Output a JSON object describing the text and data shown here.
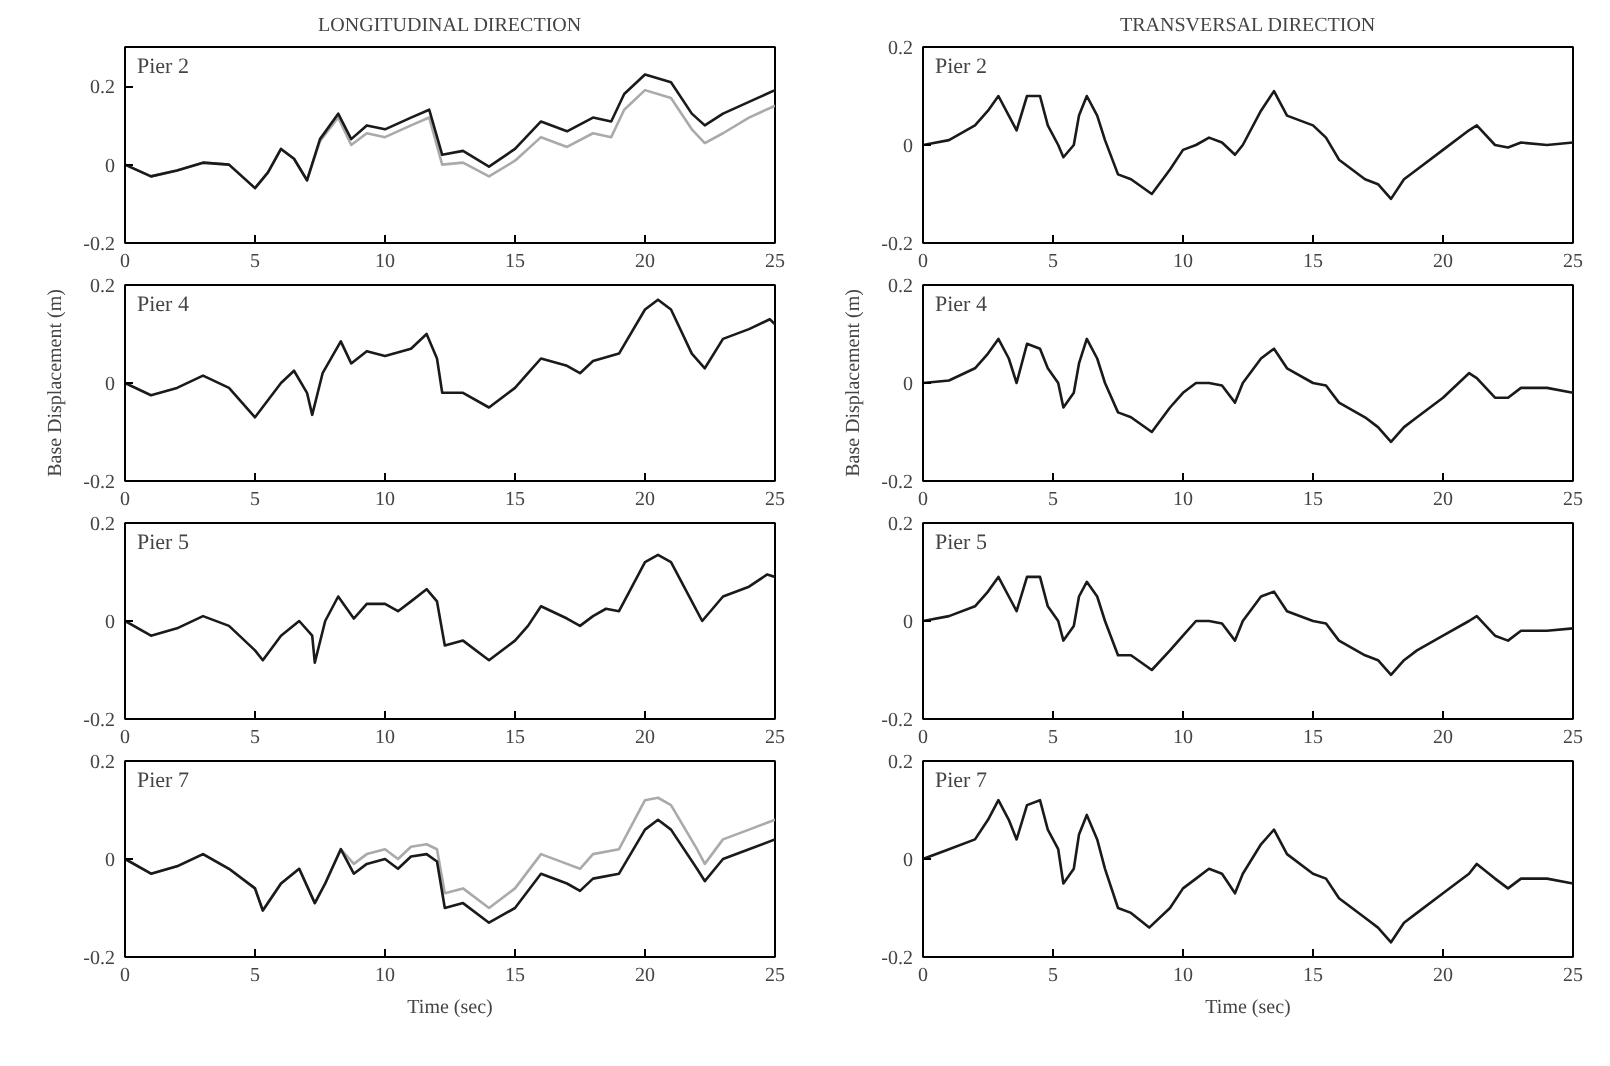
{
  "chart_data": [
    {
      "type": "line",
      "title": "LONGITUDINAL DIRECTION",
      "annotations": [
        "Pier 2"
      ],
      "xlim": [
        0,
        25
      ],
      "xticks": [
        0,
        5,
        10,
        15,
        20,
        25
      ],
      "ylim": [
        -0.2,
        0.3
      ],
      "yticks": [
        -0.2,
        0,
        0.2
      ],
      "grid": false,
      "legend": false,
      "series": [
        {
          "color": "#aaaaaa",
          "x": [
            0,
            1,
            2,
            3,
            4,
            5,
            5.5,
            6,
            6.5,
            7,
            7.5,
            8.2,
            8.7,
            9.3,
            10,
            11,
            11.7,
            12.2,
            13,
            14,
            15,
            16,
            17,
            18,
            18.7,
            19.2,
            20,
            21,
            21.8,
            22.3,
            23,
            24,
            25
          ],
          "values": [
            0,
            -0.03,
            -0.015,
            0.005,
            0,
            -0.06,
            -0.02,
            0.04,
            0.015,
            -0.04,
            0.06,
            0.12,
            0.05,
            0.08,
            0.07,
            0.1,
            0.12,
            0.0,
            0.005,
            -0.03,
            0.01,
            0.07,
            0.045,
            0.08,
            0.07,
            0.14,
            0.19,
            0.17,
            0.09,
            0.055,
            0.08,
            0.12,
            0.15
          ]
        },
        {
          "color": "#1a1a1a",
          "x": [
            0,
            1,
            2,
            3,
            4,
            5,
            5.5,
            6,
            6.5,
            7,
            7.5,
            8.2,
            8.7,
            9.3,
            10,
            11,
            11.7,
            12.2,
            13,
            14,
            15,
            16,
            17,
            18,
            18.7,
            19.2,
            20,
            21,
            21.8,
            22.3,
            23,
            24,
            25
          ],
          "values": [
            0,
            -0.03,
            -0.015,
            0.005,
            0,
            -0.06,
            -0.02,
            0.04,
            0.015,
            -0.04,
            0.065,
            0.13,
            0.065,
            0.1,
            0.09,
            0.12,
            0.14,
            0.025,
            0.035,
            -0.005,
            0.04,
            0.11,
            0.085,
            0.12,
            0.11,
            0.18,
            0.23,
            0.21,
            0.13,
            0.1,
            0.13,
            0.16,
            0.19
          ]
        }
      ]
    },
    {
      "type": "line",
      "title": "TRANSVERSAL DIRECTION",
      "annotations": [
        "Pier 2"
      ],
      "xlim": [
        0,
        25
      ],
      "xticks": [
        0,
        5,
        10,
        15,
        20,
        25
      ],
      "ylim": [
        -0.2,
        0.2
      ],
      "yticks": [
        -0.2,
        0,
        0.2
      ],
      "grid": false,
      "legend": false,
      "series": [
        {
          "color": "#1a1a1a",
          "x": [
            0,
            1,
            2,
            2.5,
            2.9,
            3.3,
            3.6,
            4,
            4.5,
            4.8,
            5.2,
            5.4,
            5.8,
            6,
            6.3,
            6.7,
            7,
            7.5,
            8,
            8.8,
            9.5,
            10,
            10.5,
            11,
            11.5,
            12,
            12.3,
            13,
            13.5,
            14,
            15,
            15.5,
            16,
            17,
            17.5,
            18,
            18.5,
            19,
            20,
            21,
            21.3,
            22,
            22.5,
            23,
            24,
            25
          ],
          "values": [
            0,
            0.01,
            0.04,
            0.07,
            0.1,
            0.06,
            0.03,
            0.1,
            0.1,
            0.04,
            0.0,
            -0.025,
            0.0,
            0.06,
            0.1,
            0.06,
            0.01,
            -0.06,
            -0.07,
            -0.1,
            -0.05,
            -0.01,
            0.0,
            0.015,
            0.005,
            -0.02,
            0.0,
            0.07,
            0.11,
            0.06,
            0.04,
            0.015,
            -0.03,
            -0.07,
            -0.08,
            -0.11,
            -0.07,
            -0.05,
            -0.01,
            0.03,
            0.04,
            0.0,
            -0.005,
            0.005,
            0.0,
            0.005
          ]
        }
      ]
    },
    {
      "type": "line",
      "ylabel": "Base Displacement (m)",
      "annotations": [
        "Pier 4"
      ],
      "xlim": [
        0,
        25
      ],
      "xticks": [
        0,
        5,
        10,
        15,
        20,
        25
      ],
      "ylim": [
        -0.2,
        0.2
      ],
      "yticks": [
        -0.2,
        0,
        0.2
      ],
      "grid": false,
      "legend": false,
      "series": [
        {
          "color": "#1a1a1a",
          "x": [
            0,
            1,
            2,
            3,
            4,
            5,
            6,
            6.5,
            7,
            7.2,
            7.6,
            8.3,
            8.7,
            9.3,
            10,
            11,
            11.6,
            12,
            12.2,
            13,
            14,
            15,
            15.5,
            16,
            17,
            17.5,
            18,
            19,
            20,
            20.5,
            21,
            21.8,
            22.3,
            23,
            24,
            24.8,
            25
          ],
          "values": [
            0,
            -0.025,
            -0.01,
            0.015,
            -0.01,
            -0.07,
            0.0,
            0.025,
            -0.02,
            -0.065,
            0.02,
            0.085,
            0.04,
            0.065,
            0.055,
            0.07,
            0.1,
            0.05,
            -0.02,
            -0.02,
            -0.05,
            -0.01,
            0.02,
            0.05,
            0.035,
            0.02,
            0.045,
            0.06,
            0.15,
            0.17,
            0.15,
            0.06,
            0.03,
            0.09,
            0.11,
            0.13,
            0.12
          ]
        }
      ]
    },
    {
      "type": "line",
      "ylabel": "Base Displacement (m)",
      "annotations": [
        "Pier 4"
      ],
      "xlim": [
        0,
        25
      ],
      "xticks": [
        0,
        5,
        10,
        15,
        20,
        25
      ],
      "ylim": [
        -0.2,
        0.2
      ],
      "yticks": [
        -0.2,
        0,
        0.2
      ],
      "grid": false,
      "legend": false,
      "series": [
        {
          "color": "#1a1a1a",
          "x": [
            0,
            1,
            2,
            2.5,
            2.9,
            3.3,
            3.6,
            4,
            4.5,
            4.8,
            5.2,
            5.4,
            5.8,
            6,
            6.3,
            6.7,
            7,
            7.5,
            8,
            8.8,
            9.5,
            10,
            10.5,
            11,
            11.5,
            12,
            12.3,
            13,
            13.5,
            14,
            15,
            15.5,
            16,
            17,
            17.5,
            18,
            18.5,
            19,
            20,
            21,
            21.3,
            22,
            22.5,
            23,
            24,
            25
          ],
          "values": [
            0,
            0.005,
            0.03,
            0.06,
            0.09,
            0.05,
            0.0,
            0.08,
            0.07,
            0.03,
            0.0,
            -0.05,
            -0.02,
            0.04,
            0.09,
            0.05,
            0.0,
            -0.06,
            -0.07,
            -0.1,
            -0.05,
            -0.02,
            0.0,
            0.0,
            -0.005,
            -0.04,
            0.0,
            0.05,
            0.07,
            0.03,
            0.0,
            -0.005,
            -0.04,
            -0.07,
            -0.09,
            -0.12,
            -0.09,
            -0.07,
            -0.03,
            0.02,
            0.01,
            -0.03,
            -0.03,
            -0.01,
            -0.01,
            -0.02
          ]
        }
      ]
    },
    {
      "type": "line",
      "annotations": [
        "Pier 5"
      ],
      "xlim": [
        0,
        25
      ],
      "xticks": [
        0,
        5,
        10,
        15,
        20,
        25
      ],
      "ylim": [
        -0.2,
        0.2
      ],
      "yticks": [
        -0.2,
        0,
        0.2
      ],
      "grid": false,
      "legend": false,
      "series": [
        {
          "color": "#1a1a1a",
          "x": [
            0,
            1,
            2,
            3,
            4,
            5,
            5.3,
            6,
            6.7,
            7.2,
            7.3,
            7.7,
            8.2,
            8.8,
            9.3,
            10,
            10.5,
            11,
            11.6,
            12,
            12.3,
            13,
            14,
            15,
            15.5,
            16,
            17,
            17.5,
            18,
            18.5,
            19,
            19.5,
            20,
            20.5,
            21,
            21.8,
            22.2,
            23,
            24,
            24.7,
            25
          ],
          "values": [
            0,
            -0.03,
            -0.015,
            0.01,
            -0.01,
            -0.06,
            -0.08,
            -0.03,
            0.0,
            -0.03,
            -0.085,
            0.0,
            0.05,
            0.005,
            0.035,
            0.035,
            0.02,
            0.04,
            0.065,
            0.04,
            -0.05,
            -0.04,
            -0.08,
            -0.04,
            -0.01,
            0.03,
            0.005,
            -0.01,
            0.01,
            0.025,
            0.02,
            0.07,
            0.12,
            0.135,
            0.12,
            0.04,
            0.0,
            0.05,
            0.07,
            0.095,
            0.09
          ]
        }
      ]
    },
    {
      "type": "line",
      "annotations": [
        "Pier 5"
      ],
      "xlim": [
        0,
        25
      ],
      "xticks": [
        0,
        5,
        10,
        15,
        20,
        25
      ],
      "ylim": [
        -0.2,
        0.2
      ],
      "yticks": [
        -0.2,
        0,
        0.2
      ],
      "grid": false,
      "legend": false,
      "series": [
        {
          "color": "#1a1a1a",
          "x": [
            0,
            1,
            2,
            2.5,
            2.9,
            3.3,
            3.6,
            4,
            4.5,
            4.8,
            5.2,
            5.4,
            5.8,
            6,
            6.3,
            6.7,
            7,
            7.5,
            8,
            8.8,
            9.5,
            10,
            10.5,
            11,
            11.5,
            12,
            12.3,
            13,
            13.5,
            14,
            15,
            15.5,
            16,
            17,
            17.5,
            18,
            18.5,
            19,
            20,
            21,
            21.3,
            22,
            22.5,
            23,
            24,
            25
          ],
          "values": [
            0,
            0.01,
            0.03,
            0.06,
            0.09,
            0.05,
            0.02,
            0.09,
            0.09,
            0.03,
            0.0,
            -0.04,
            -0.01,
            0.05,
            0.08,
            0.05,
            0.0,
            -0.07,
            -0.07,
            -0.1,
            -0.06,
            -0.03,
            0.0,
            0.0,
            -0.005,
            -0.04,
            0.0,
            0.05,
            0.06,
            0.02,
            0.0,
            -0.005,
            -0.04,
            -0.07,
            -0.08,
            -0.11,
            -0.08,
            -0.06,
            -0.03,
            0.0,
            0.01,
            -0.03,
            -0.04,
            -0.02,
            -0.02,
            -0.015
          ]
        }
      ]
    },
    {
      "type": "line",
      "xlabel": "Time (sec)",
      "annotations": [
        "Pier 7"
      ],
      "xlim": [
        0,
        25
      ],
      "xticks": [
        0,
        5,
        10,
        15,
        20,
        25
      ],
      "ylim": [
        -0.2,
        0.2
      ],
      "yticks": [
        -0.2,
        0,
        0.2
      ],
      "grid": false,
      "legend": false,
      "series": [
        {
          "color": "#aaaaaa",
          "x": [
            0,
            1,
            2,
            3,
            4,
            5,
            5.3,
            6,
            6.7,
            7.3,
            7.7,
            8.3,
            8.8,
            9.3,
            10,
            10.5,
            11,
            11.6,
            12,
            12.3,
            13,
            14,
            15,
            16,
            17,
            17.5,
            18,
            19,
            20,
            20.5,
            21,
            22,
            22.3,
            23,
            24,
            25
          ],
          "values": [
            0,
            -0.03,
            -0.015,
            0.01,
            -0.02,
            -0.06,
            -0.105,
            -0.05,
            -0.02,
            -0.09,
            -0.05,
            0.02,
            -0.01,
            0.01,
            0.02,
            0.0,
            0.025,
            0.03,
            0.02,
            -0.07,
            -0.06,
            -0.1,
            -0.06,
            0.01,
            -0.01,
            -0.02,
            0.01,
            0.02,
            0.12,
            0.125,
            0.11,
            0.02,
            -0.01,
            0.04,
            0.06,
            0.08
          ]
        },
        {
          "color": "#1a1a1a",
          "x": [
            0,
            1,
            2,
            3,
            4,
            5,
            5.3,
            6,
            6.7,
            7.3,
            7.7,
            8.3,
            8.8,
            9.3,
            10,
            10.5,
            11,
            11.6,
            12,
            12.3,
            13,
            14,
            15,
            16,
            17,
            17.5,
            18,
            19,
            20,
            20.5,
            21,
            22,
            22.3,
            23,
            24,
            25
          ],
          "values": [
            0,
            -0.03,
            -0.015,
            0.01,
            -0.02,
            -0.06,
            -0.105,
            -0.05,
            -0.02,
            -0.09,
            -0.05,
            0.02,
            -0.03,
            -0.01,
            0.0,
            -0.02,
            0.005,
            0.01,
            -0.005,
            -0.1,
            -0.09,
            -0.13,
            -0.1,
            -0.03,
            -0.05,
            -0.065,
            -0.04,
            -0.03,
            0.06,
            0.08,
            0.06,
            -0.02,
            -0.045,
            0.0,
            0.02,
            0.04
          ]
        }
      ]
    },
    {
      "type": "line",
      "xlabel": "Time (sec)",
      "annotations": [
        "Pier 7"
      ],
      "xlim": [
        0,
        25
      ],
      "xticks": [
        0,
        5,
        10,
        15,
        20,
        25
      ],
      "ylim": [
        -0.2,
        0.2
      ],
      "yticks": [
        -0.2,
        0,
        0.2
      ],
      "grid": false,
      "legend": false,
      "series": [
        {
          "color": "#1a1a1a",
          "x": [
            0,
            1,
            2,
            2.5,
            2.9,
            3.3,
            3.6,
            4,
            4.5,
            4.8,
            5.2,
            5.4,
            5.8,
            6,
            6.3,
            6.7,
            7,
            7.5,
            8,
            8.7,
            9.5,
            10,
            10.5,
            11,
            11.5,
            12,
            12.3,
            13,
            13.5,
            14,
            15,
            15.5,
            16,
            17,
            17.5,
            18,
            18.5,
            19,
            20,
            21,
            21.3,
            22,
            22.5,
            23,
            24,
            25
          ],
          "values": [
            0,
            0.02,
            0.04,
            0.08,
            0.12,
            0.08,
            0.04,
            0.11,
            0.12,
            0.06,
            0.02,
            -0.05,
            -0.02,
            0.05,
            0.09,
            0.04,
            -0.02,
            -0.1,
            -0.11,
            -0.14,
            -0.1,
            -0.06,
            -0.04,
            -0.02,
            -0.03,
            -0.07,
            -0.03,
            0.03,
            0.06,
            0.01,
            -0.03,
            -0.04,
            -0.08,
            -0.12,
            -0.14,
            -0.17,
            -0.13,
            -0.11,
            -0.07,
            -0.03,
            -0.01,
            -0.04,
            -0.06,
            -0.04,
            -0.04,
            -0.05
          ]
        }
      ]
    }
  ]
}
